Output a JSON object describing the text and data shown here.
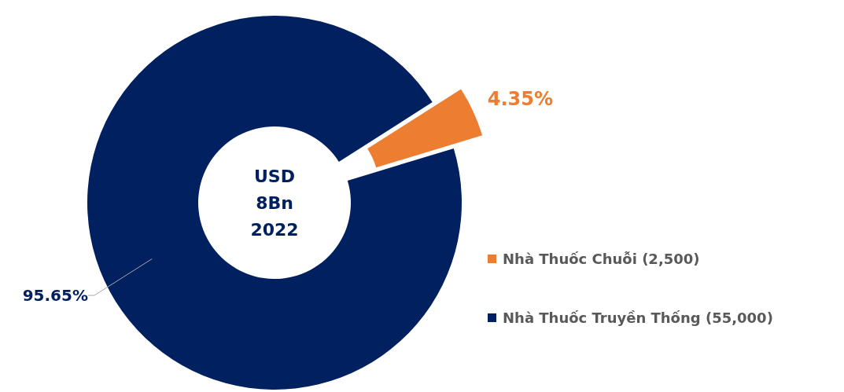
{
  "chart_data": {
    "type": "donut",
    "categories": [
      "Nhà Thuốc Chuỗi (2,500)",
      "Nhà Thuốc Truyền Thống (55,000)"
    ],
    "values": [
      4.35,
      95.65
    ],
    "colors": [
      "#ed7d31",
      "#002060"
    ],
    "value_labels": [
      "4.35%",
      "95.65%"
    ],
    "annotations": [
      "USD 8Bn 2022"
    ],
    "legend": "right"
  }
}
